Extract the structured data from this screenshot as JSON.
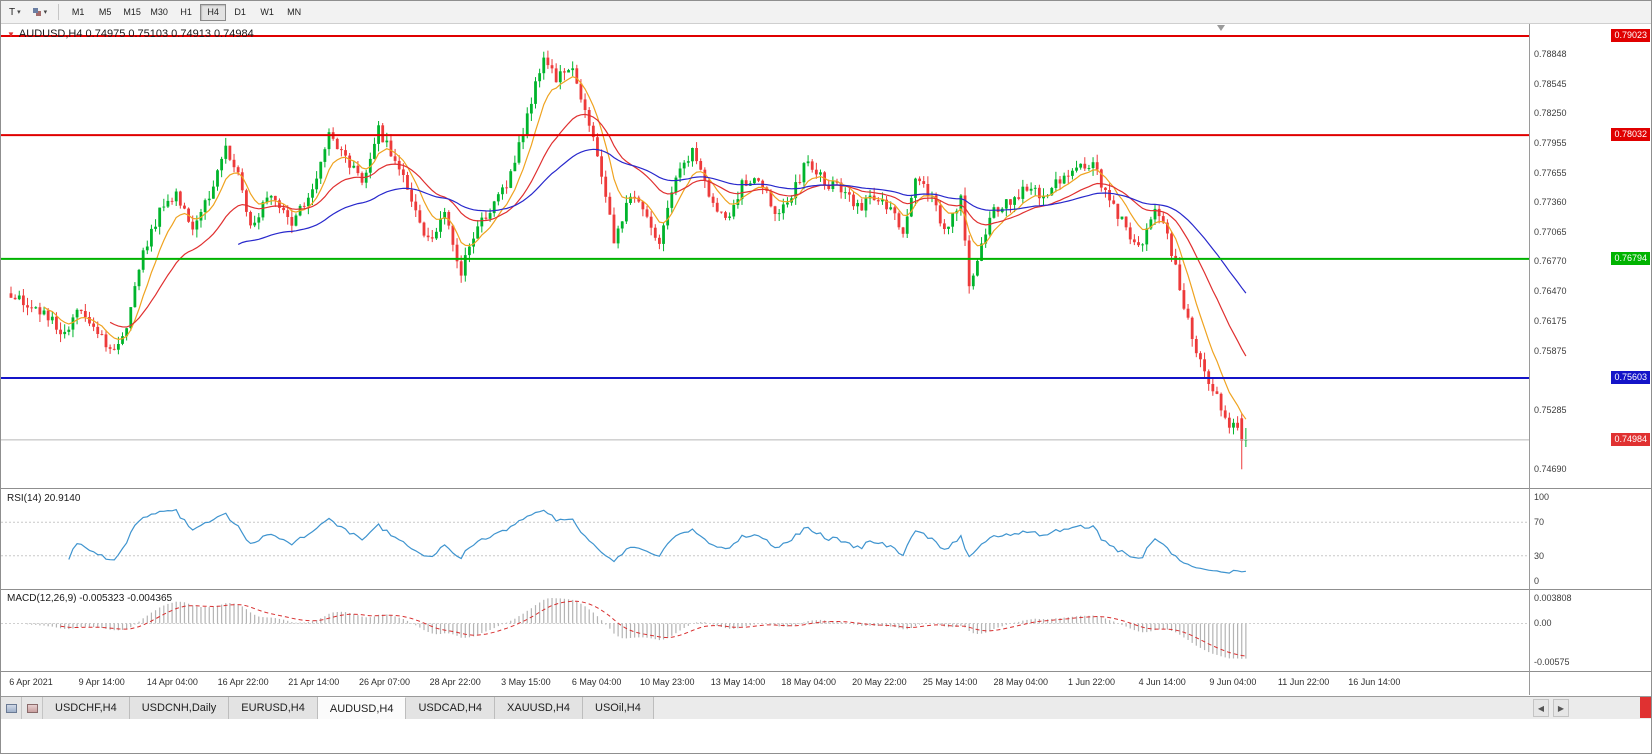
{
  "icons": {
    "caret": "▾",
    "direction": "▼",
    "prev": "◀",
    "next": "▶"
  },
  "toolbar": {
    "template_button": "T",
    "timeframes": [
      "M1",
      "M5",
      "M15",
      "M30",
      "H1",
      "H4",
      "D1",
      "W1",
      "MN"
    ],
    "active_timeframe": "H4"
  },
  "chart_title": "AUDUSD,H4 0.74975 0.75103 0.74913 0.74984",
  "tabs": {
    "items": [
      "USDCHF,H4",
      "USDCNH,Daily",
      "EURUSD,H4",
      "AUDUSD,H4",
      "USDCAD,H4",
      "XAUUSD,H4",
      "USOil,H4"
    ],
    "active": "AUDUSD,H4"
  },
  "chart_data": {
    "type": "candlestick",
    "symbol": "AUDUSD",
    "timeframe": "H4",
    "current_ohlc": {
      "open": "0.74975",
      "high": "0.75103",
      "low": "0.74913",
      "close": "0.74984"
    },
    "bars": 300,
    "x_start": 10,
    "x_step": 4.13,
    "ylim": [
      0.74503,
      0.79153
    ],
    "up_color": "#00b42c",
    "down_color": "#ed3a3a",
    "price_anchors": [
      [
        0,
        0.7645
      ],
      [
        8,
        0.7625
      ],
      [
        13,
        0.7605
      ],
      [
        17,
        0.7632
      ],
      [
        22,
        0.76
      ],
      [
        25,
        0.7588
      ],
      [
        28,
        0.7612
      ],
      [
        31,
        0.7672
      ],
      [
        36,
        0.7728
      ],
      [
        40,
        0.7746
      ],
      [
        44,
        0.7712
      ],
      [
        48,
        0.7745
      ],
      [
        52,
        0.7788
      ],
      [
        55,
        0.7762
      ],
      [
        58,
        0.7712
      ],
      [
        63,
        0.7744
      ],
      [
        68,
        0.7716
      ],
      [
        73,
        0.775
      ],
      [
        77,
        0.7802
      ],
      [
        81,
        0.778
      ],
      [
        85,
        0.7756
      ],
      [
        89,
        0.7808
      ],
      [
        93,
        0.778
      ],
      [
        97,
        0.774
      ],
      [
        101,
        0.7696
      ],
      [
        105,
        0.7722
      ],
      [
        109,
        0.7668
      ],
      [
        113,
        0.7712
      ],
      [
        117,
        0.7736
      ],
      [
        121,
        0.7762
      ],
      [
        125,
        0.782
      ],
      [
        129,
        0.7884
      ],
      [
        132,
        0.786
      ],
      [
        136,
        0.7872
      ],
      [
        139,
        0.783
      ],
      [
        143,
        0.7762
      ],
      [
        146,
        0.77
      ],
      [
        150,
        0.7742
      ],
      [
        154,
        0.7722
      ],
      [
        157,
        0.7692
      ],
      [
        161,
        0.7762
      ],
      [
        165,
        0.7786
      ],
      [
        169,
        0.7746
      ],
      [
        173,
        0.7716
      ],
      [
        177,
        0.7754
      ],
      [
        181,
        0.776
      ],
      [
        185,
        0.7726
      ],
      [
        189,
        0.7742
      ],
      [
        193,
        0.778
      ],
      [
        197,
        0.7756
      ],
      [
        201,
        0.775
      ],
      [
        205,
        0.773
      ],
      [
        209,
        0.7742
      ],
      [
        213,
        0.773
      ],
      [
        216,
        0.77
      ],
      [
        219,
        0.7764
      ],
      [
        223,
        0.774
      ],
      [
        226,
        0.7706
      ],
      [
        230,
        0.774
      ],
      [
        232,
        0.765
      ],
      [
        234,
        0.7682
      ],
      [
        238,
        0.773
      ],
      [
        242,
        0.7736
      ],
      [
        246,
        0.775
      ],
      [
        250,
        0.7744
      ],
      [
        254,
        0.776
      ],
      [
        258,
        0.777
      ],
      [
        262,
        0.7774
      ],
      [
        266,
        0.7736
      ],
      [
        270,
        0.771
      ],
      [
        273,
        0.769
      ],
      [
        277,
        0.7726
      ],
      [
        280,
        0.7705
      ],
      [
        283,
        0.765
      ],
      [
        286,
        0.76
      ],
      [
        289,
        0.7565
      ],
      [
        292,
        0.754
      ],
      [
        295,
        0.7506
      ],
      [
        297,
        0.7516
      ],
      [
        299,
        0.74984
      ]
    ],
    "last_bars": [
      {
        "o": 0.752,
        "h": 0.7525,
        "l": 0.7469,
        "c": 0.74975
      },
      {
        "o": 0.74975,
        "h": 0.75103,
        "l": 0.74913,
        "c": 0.74984
      }
    ],
    "hlines": [
      {
        "value": 0.79023,
        "label": "0.79023",
        "color": "#e00000"
      },
      {
        "value": 0.78032,
        "label": "0.78032",
        "color": "#e00000"
      },
      {
        "value": 0.76794,
        "label": "0.76794",
        "color": "#00b300"
      },
      {
        "value": 0.75603,
        "label": "0.75603",
        "color": "#1414c8"
      }
    ],
    "current_price": {
      "value": 0.74984,
      "label": "0.74984",
      "badge_color": "#e03131",
      "line_color": "#b8b8b8"
    },
    "y_axis_labels": [
      {
        "text": "0.78848",
        "value": 0.78848
      },
      {
        "text": "0.78545",
        "value": 0.78545
      },
      {
        "text": "0.78250",
        "value": 0.7825
      },
      {
        "text": "0.77955",
        "value": 0.77955
      },
      {
        "text": "0.77655",
        "value": 0.77655
      },
      {
        "text": "0.77360",
        "value": 0.7736
      },
      {
        "text": "0.77065",
        "value": 0.77065
      },
      {
        "text": "0.76770",
        "value": 0.7677
      },
      {
        "text": "0.76470",
        "value": 0.7647
      },
      {
        "text": "0.76175",
        "value": 0.76175
      },
      {
        "text": "0.75875",
        "value": 0.75875
      },
      {
        "text": "0.75285",
        "value": 0.75285
      },
      {
        "text": "0.74690",
        "value": 0.7469
      }
    ],
    "x_axis_labels": [
      "6 Apr 2021",
      "9 Apr 14:00",
      "14 Apr 04:00",
      "16 Apr 22:00",
      "21 Apr 14:00",
      "26 Apr 07:00",
      "28 Apr 22:00",
      "3 May 15:00",
      "6 May 04:00",
      "10 May 23:00",
      "13 May 14:00",
      "18 May 04:00",
      "20 May 22:00",
      "25 May 14:00",
      "28 May 04:00",
      "1 Jun 22:00",
      "4 Jun 14:00",
      "9 Jun 04:00",
      "11 Jun 22:00",
      "16 Jun 14:00"
    ],
    "moving_averages": [
      {
        "period": 8,
        "color": "#efa320",
        "name": "fast-ma"
      },
      {
        "period": 24,
        "color": "#e03030",
        "name": "mid-ma"
      },
      {
        "period": 55,
        "color": "#2828cc",
        "name": "slow-ma"
      }
    ],
    "indicators": {
      "rsi": {
        "label": "RSI(14) 20.9140",
        "period": 14,
        "value": "20.9140",
        "color": "#3f94cf",
        "levels": [
          70,
          30
        ],
        "scale": [
          {
            "text": "100",
            "value": 100
          },
          {
            "text": "70",
            "value": 70
          },
          {
            "text": "30",
            "value": 30
          },
          {
            "text": "0",
            "value": 0
          }
        ]
      },
      "macd": {
        "label": "MACD(12,26,9) -0.005323 -0.004365",
        "fast": 12,
        "slow": 26,
        "signal": 9,
        "values": "-0.005323 -0.004365",
        "hist_color": "#b4b4b4",
        "signal_color": "#d83030",
        "scale": [
          {
            "text": "0.003808",
            "value": 0.003808
          },
          {
            "text": "0.00",
            "value": 0.0
          },
          {
            "text": "-0.00575",
            "value": -0.00575
          }
        ]
      }
    }
  }
}
